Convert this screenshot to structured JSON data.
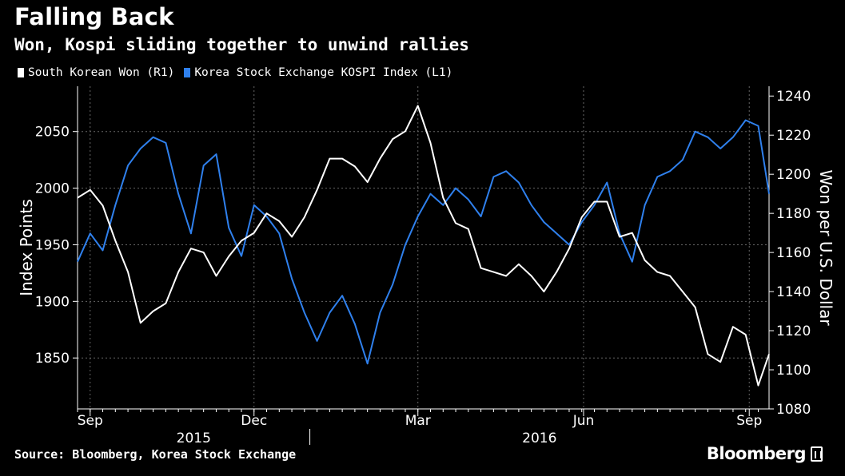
{
  "header": {
    "title": "Falling Back",
    "subtitle": "Won, Kospi sliding together to unwind rallies"
  },
  "legend": {
    "items": [
      {
        "label": "South Korean Won (R1)",
        "color": "#ffffff"
      },
      {
        "label": "Korea Stock Exchange KOSPI Index (L1)",
        "color": "#2f80ed"
      }
    ]
  },
  "footer": {
    "source": "Source: Bloomberg, Korea Stock Exchange",
    "brand": "Bloomberg"
  },
  "chart_data": {
    "type": "line",
    "x_axis": {
      "range": [
        "2015-08-25",
        "2016-09-12"
      ],
      "month_ticks": [
        {
          "label": "Sep",
          "date": "2015-09-01"
        },
        {
          "label": "Dec",
          "date": "2015-12-01"
        },
        {
          "label": "Mar",
          "date": "2016-03-01"
        },
        {
          "label": "Jun",
          "date": "2016-06-01"
        },
        {
          "label": "Sep",
          "date": "2016-09-01"
        }
      ],
      "year_labels": [
        {
          "label": "2015"
        },
        {
          "label": "2016"
        }
      ]
    },
    "y_left": {
      "label": "Index Points",
      "range": [
        1805,
        2090
      ],
      "ticks": [
        1850,
        1900,
        1950,
        2000,
        2050
      ]
    },
    "y_right": {
      "label": "Won per U.S. Dollar",
      "range": [
        1080,
        1245
      ],
      "ticks": [
        1080,
        1100,
        1120,
        1140,
        1160,
        1180,
        1200,
        1220,
        1240
      ]
    },
    "grid": true,
    "series": [
      {
        "name": "South Korean Won (R1)",
        "axis": "right",
        "color": "#ffffff",
        "x": [
          "2015-08-25",
          "2015-09-01",
          "2015-09-08",
          "2015-09-15",
          "2015-09-22",
          "2015-09-29",
          "2015-10-06",
          "2015-10-13",
          "2015-10-20",
          "2015-10-27",
          "2015-11-03",
          "2015-11-10",
          "2015-11-17",
          "2015-11-24",
          "2015-12-01",
          "2015-12-08",
          "2015-12-15",
          "2015-12-22",
          "2015-12-29",
          "2016-01-05",
          "2016-01-12",
          "2016-01-19",
          "2016-01-26",
          "2016-02-02",
          "2016-02-09",
          "2016-02-16",
          "2016-02-23",
          "2016-03-01",
          "2016-03-08",
          "2016-03-15",
          "2016-03-22",
          "2016-03-29",
          "2016-04-05",
          "2016-04-12",
          "2016-04-19",
          "2016-04-26",
          "2016-05-03",
          "2016-05-10",
          "2016-05-17",
          "2016-05-24",
          "2016-05-31",
          "2016-06-07",
          "2016-06-14",
          "2016-06-21",
          "2016-06-28",
          "2016-07-05",
          "2016-07-12",
          "2016-07-19",
          "2016-07-26",
          "2016-08-02",
          "2016-08-09",
          "2016-08-16",
          "2016-08-23",
          "2016-08-30",
          "2016-09-06",
          "2016-09-12"
        ],
        "values": [
          1188,
          1192,
          1184,
          1166,
          1150,
          1124,
          1130,
          1134,
          1150,
          1162,
          1160,
          1148,
          1158,
          1166,
          1170,
          1180,
          1176,
          1168,
          1178,
          1192,
          1208,
          1208,
          1204,
          1196,
          1208,
          1218,
          1222,
          1235,
          1216,
          1188,
          1175,
          1172,
          1152,
          1150,
          1148,
          1154,
          1148,
          1140,
          1150,
          1162,
          1178,
          1186,
          1186,
          1168,
          1170,
          1156,
          1150,
          1148,
          1140,
          1132,
          1108,
          1104,
          1122,
          1118,
          1092,
          1108
        ]
      },
      {
        "name": "Korea Stock Exchange KOSPI Index (L1)",
        "axis": "left",
        "color": "#2f80ed",
        "x": [
          "2015-08-25",
          "2015-09-01",
          "2015-09-08",
          "2015-09-15",
          "2015-09-22",
          "2015-09-29",
          "2015-10-06",
          "2015-10-13",
          "2015-10-20",
          "2015-10-27",
          "2015-11-03",
          "2015-11-10",
          "2015-11-17",
          "2015-11-24",
          "2015-12-01",
          "2015-12-08",
          "2015-12-15",
          "2015-12-22",
          "2015-12-29",
          "2016-01-05",
          "2016-01-12",
          "2016-01-19",
          "2016-01-26",
          "2016-02-02",
          "2016-02-09",
          "2016-02-16",
          "2016-02-23",
          "2016-03-01",
          "2016-03-08",
          "2016-03-15",
          "2016-03-22",
          "2016-03-29",
          "2016-04-05",
          "2016-04-12",
          "2016-04-19",
          "2016-04-26",
          "2016-05-03",
          "2016-05-10",
          "2016-05-17",
          "2016-05-24",
          "2016-05-31",
          "2016-06-07",
          "2016-06-14",
          "2016-06-21",
          "2016-06-28",
          "2016-07-05",
          "2016-07-12",
          "2016-07-19",
          "2016-07-26",
          "2016-08-02",
          "2016-08-09",
          "2016-08-16",
          "2016-08-23",
          "2016-08-30",
          "2016-09-06",
          "2016-09-12"
        ],
        "values": [
          1935,
          1960,
          1945,
          1985,
          2020,
          2035,
          2045,
          2040,
          1995,
          1960,
          2020,
          2030,
          1965,
          1940,
          1985,
          1975,
          1960,
          1920,
          1890,
          1865,
          1890,
          1905,
          1880,
          1845,
          1890,
          1915,
          1950,
          1975,
          1995,
          1985,
          2000,
          1990,
          1975,
          2010,
          2015,
          2005,
          1985,
          1970,
          1960,
          1950,
          1970,
          1985,
          2005,
          1960,
          1935,
          1985,
          2010,
          2015,
          2025,
          2050,
          2045,
          2035,
          2045,
          2060,
          2055,
          1995
        ]
      }
    ]
  }
}
